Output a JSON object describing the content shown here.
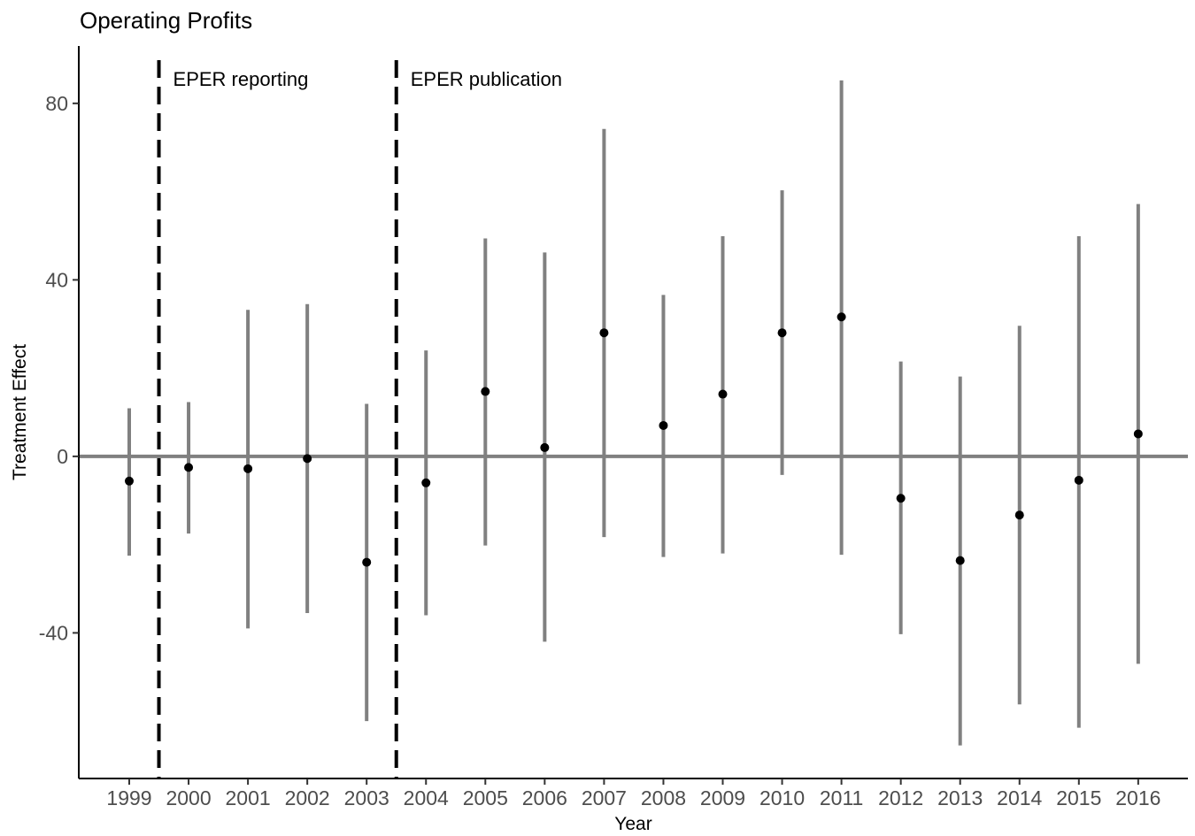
{
  "chart_data": {
    "type": "scatter",
    "title": "Operating Profits",
    "xlabel": "Year",
    "ylabel": "Treatment Effect",
    "ylim": [
      -73,
      93
    ],
    "yticks": [
      -40,
      0,
      40,
      80
    ],
    "grid": false,
    "categories": [
      "1999",
      "2000",
      "2001",
      "2002",
      "2003",
      "2004",
      "2005",
      "2006",
      "2007",
      "2008",
      "2009",
      "2010",
      "2011",
      "2012",
      "2013",
      "2014",
      "2015",
      "2016"
    ],
    "series": [
      {
        "estimates": [
          -5.6,
          -2.5,
          -2.8,
          -0.5,
          -24,
          -6,
          14.7,
          2,
          28,
          7,
          14.1,
          28,
          31.6,
          -9.5,
          -23.6,
          -13.3,
          -5.4,
          5.1
        ],
        "ci_low": [
          -22.5,
          -17.5,
          -39,
          -35.5,
          -60,
          -36,
          -20.2,
          -42,
          -18.3,
          -22.8,
          -22,
          -4.2,
          -22.3,
          -40.3,
          -65.5,
          -56.2,
          -61.5,
          -47
        ],
        "ci_high": [
          10.9,
          12.3,
          33.2,
          34.5,
          11.9,
          24,
          49.4,
          46.2,
          74.2,
          36.6,
          49.9,
          60.3,
          85.2,
          21.5,
          18.1,
          29.6,
          49.9,
          57.2
        ]
      }
    ],
    "reference_line": 0,
    "annotations": [
      {
        "label": "EPER reporting",
        "x": 1999.5
      },
      {
        "label": "EPER publication",
        "x": 2003.5
      }
    ],
    "colors": {
      "errorbar": "#808080",
      "point": "#000000",
      "zero_line": "#808080",
      "vline": "#000000",
      "axis": "#000000",
      "tick_label": "#4d4d4d"
    }
  }
}
